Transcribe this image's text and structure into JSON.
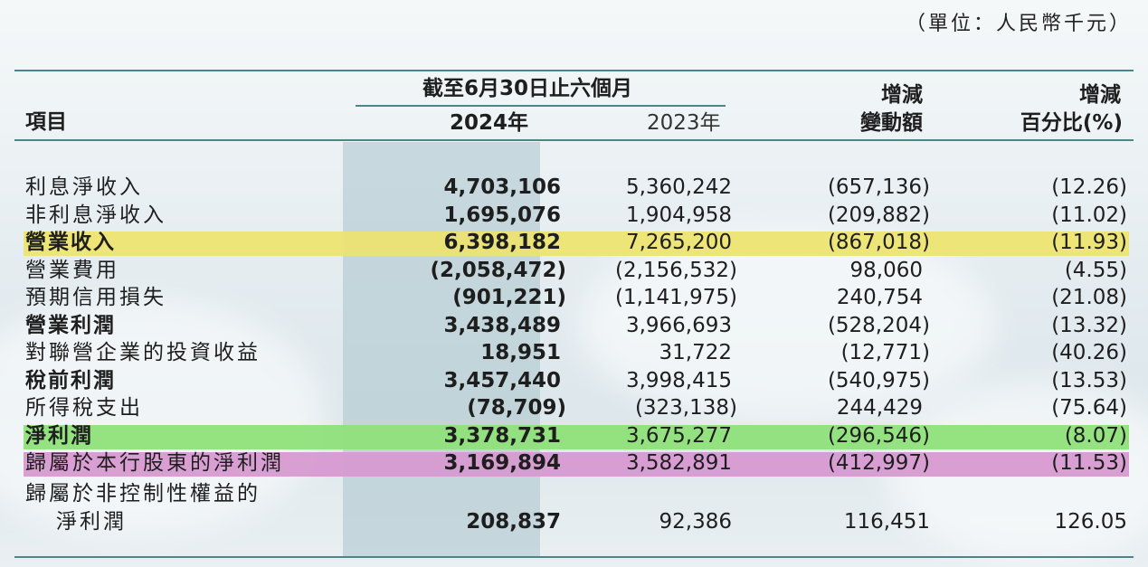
{
  "unit_note": "（單位：人民幣千元）",
  "header": {
    "item": "項目",
    "period": "截至6月30日止六個月",
    "year_current": "2024年",
    "year_prior": "2023年",
    "change_amount_1": "增減",
    "change_amount_2": "變動額",
    "change_pct_1": "增減",
    "change_pct_2": "百分比(%)"
  },
  "highlight_colors": {
    "yellow": "#ede36a",
    "green": "#8fe07a",
    "pink": "#d79ad1"
  },
  "rows": [
    {
      "label": "利息淨收入",
      "y2024": "4,703,106",
      "y2023": "5,360,242",
      "change": "(657,136)",
      "pct": "(12.26)"
    },
    {
      "label": "非利息淨收入",
      "y2024": "1,695,076",
      "y2023": "1,904,958",
      "change": "(209,882)",
      "pct": "(11.02)"
    },
    {
      "label": "營業收入",
      "y2024": "6,398,182",
      "y2023": "7,265,200",
      "change": "(867,018)",
      "pct": "(11.93)"
    },
    {
      "label": "營業費用",
      "y2024": "(2,058,472)",
      "y2023": "(2,156,532)",
      "change": "98,060",
      "pct": "(4.55)"
    },
    {
      "label": "預期信用損失",
      "y2024": "(901,221)",
      "y2023": "(1,141,975)",
      "change": "240,754",
      "pct": "(21.08)"
    },
    {
      "label": "營業利潤",
      "y2024": "3,438,489",
      "y2023": "3,966,693",
      "change": "(528,204)",
      "pct": "(13.32)"
    },
    {
      "label": "對聯營企業的投資收益",
      "y2024": "18,951",
      "y2023": "31,722",
      "change": "(12,771)",
      "pct": "(40.26)"
    },
    {
      "label": "稅前利潤",
      "y2024": "3,457,440",
      "y2023": "3,998,415",
      "change": "(540,975)",
      "pct": "(13.53)"
    },
    {
      "label": "所得稅支出",
      "y2024": "(78,709)",
      "y2023": "(323,138)",
      "change": "244,429",
      "pct": "(75.64)"
    },
    {
      "label": "淨利潤",
      "y2024": "3,378,731",
      "y2023": "3,675,277",
      "change": "(296,546)",
      "pct": "(8.07)"
    },
    {
      "label": "歸屬於本行股東的淨利潤",
      "y2024": "3,169,894",
      "y2023": "3,582,891",
      "change": "(412,997)",
      "pct": "(11.53)"
    },
    {
      "label": "歸屬於非控制性權益的",
      "y2024": "",
      "y2023": "",
      "change": "",
      "pct": ""
    },
    {
      "label": "淨利潤",
      "y2024": "208,837",
      "y2023": "92,386",
      "change": "116,451",
      "pct": "126.05"
    }
  ]
}
